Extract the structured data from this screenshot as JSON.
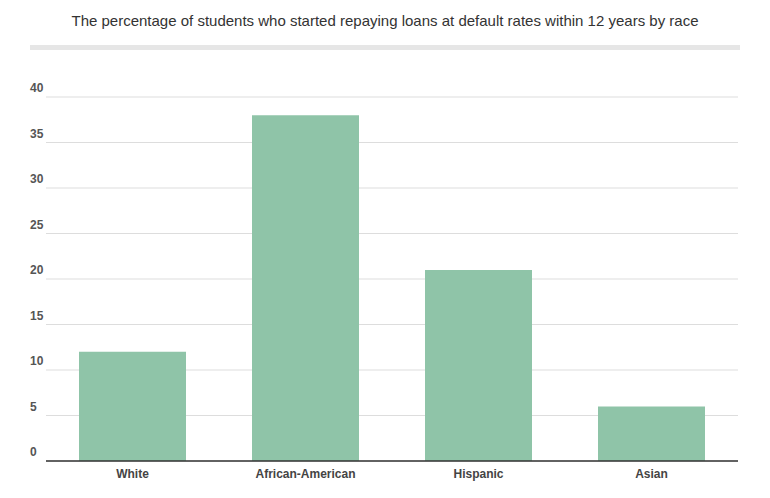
{
  "chart_data": {
    "type": "bar",
    "title": "The percentage of students who started repaying loans at default rates within 12 years by race",
    "categories": [
      "White",
      "African-American",
      "Hispanic",
      "Asian"
    ],
    "values": [
      12,
      38,
      21,
      6
    ],
    "color": "#8fc4a8",
    "ylim": [
      0,
      40
    ],
    "yticks": [
      0,
      5,
      10,
      15,
      20,
      25,
      30,
      35,
      40
    ],
    "grid": true
  }
}
